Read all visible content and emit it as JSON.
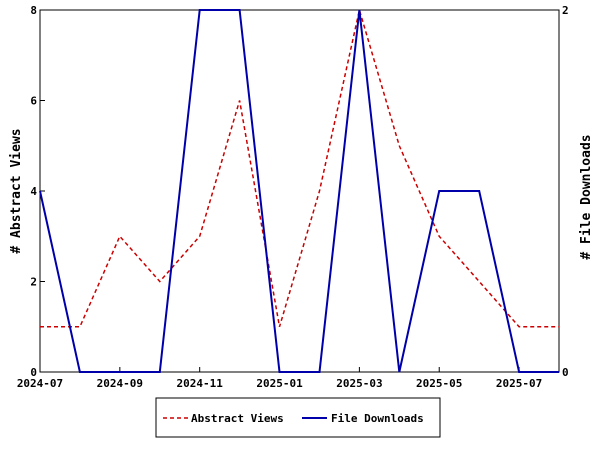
{
  "chart_data": {
    "type": "line",
    "x": [
      "2024-07",
      "2024-08",
      "2024-09",
      "2024-10",
      "2024-11",
      "2024-12",
      "2025-01",
      "2025-02",
      "2025-03",
      "2025-04",
      "2025-05",
      "2025-06",
      "2025-07",
      "2025-08"
    ],
    "x_tick_labels": [
      "2024-07",
      "2024-09",
      "2024-11",
      "2025-01",
      "2025-03",
      "2025-05",
      "2025-07"
    ],
    "series": [
      {
        "name": "Abstract Views",
        "axis": "left",
        "color": "#cc0000",
        "style": "dashed",
        "values": [
          1,
          1,
          3,
          2,
          3,
          6,
          1,
          4,
          8,
          5,
          3,
          2,
          1,
          1
        ]
      },
      {
        "name": "File Downloads",
        "axis": "right",
        "color": "#0000aa",
        "style": "solid",
        "values": [
          1,
          0,
          0,
          0,
          2,
          2,
          0,
          0,
          2,
          0,
          1,
          1,
          0,
          0
        ]
      }
    ],
    "ylabel": "# Abstract Views",
    "y2label": "# File Downloads",
    "ylim": [
      0,
      8
    ],
    "y2lim": [
      0,
      2
    ],
    "y_ticks": [
      "0",
      "2",
      "4",
      "6",
      "8"
    ],
    "y2_ticks": [
      "0",
      "2"
    ],
    "grid": false,
    "legend_position": "bottom"
  }
}
